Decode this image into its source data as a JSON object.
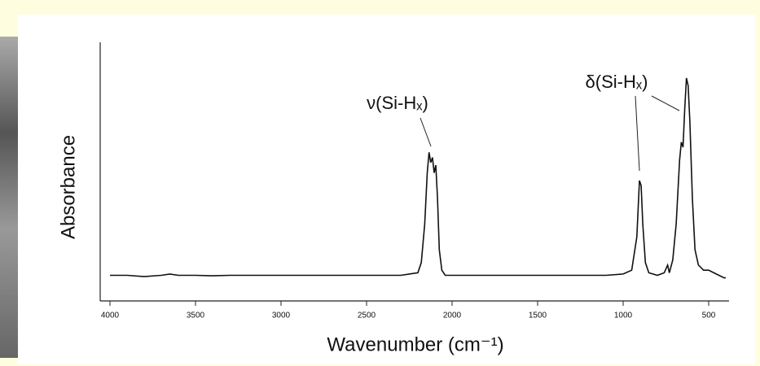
{
  "chart_data": {
    "type": "line",
    "x_label": "Wavenumber (cm⁻¹)",
    "y_label": "Absorbance",
    "annotations": [
      "ν(Si-Hₓ)",
      "δ(Si-Hₓ)"
    ],
    "x": [
      4000,
      3900,
      3800,
      3700,
      3650,
      3600,
      3500,
      3400,
      3300,
      3200,
      3000,
      2800,
      2600,
      2400,
      2300,
      2250,
      2200,
      2180,
      2160,
      2145,
      2135,
      2125,
      2115,
      2105,
      2095,
      2085,
      2075,
      2060,
      2040,
      1900,
      1700,
      1500,
      1300,
      1100,
      1000,
      950,
      920,
      905,
      895,
      885,
      870,
      850,
      800,
      760,
      740,
      730,
      710,
      690,
      670,
      660,
      650,
      640,
      630,
      620,
      610,
      595,
      580,
      560,
      530,
      500,
      470,
      440,
      410,
      400
    ],
    "values": [
      0.1,
      0.1,
      0.095,
      0.1,
      0.105,
      0.1,
      0.1,
      0.098,
      0.1,
      0.1,
      0.1,
      0.1,
      0.1,
      0.1,
      0.1,
      0.105,
      0.11,
      0.15,
      0.3,
      0.5,
      0.58,
      0.54,
      0.56,
      0.5,
      0.53,
      0.4,
      0.2,
      0.12,
      0.1,
      0.1,
      0.1,
      0.1,
      0.1,
      0.1,
      0.105,
      0.12,
      0.25,
      0.47,
      0.45,
      0.3,
      0.15,
      0.11,
      0.1,
      0.11,
      0.14,
      0.11,
      0.16,
      0.3,
      0.55,
      0.62,
      0.6,
      0.75,
      0.87,
      0.84,
      0.7,
      0.4,
      0.2,
      0.14,
      0.12,
      0.12,
      0.11,
      0.1,
      0.09,
      0.09
    ],
    "color": "#111111",
    "xlim": [
      4000,
      400
    ],
    "ylim": [
      0,
      1
    ],
    "xticks": [
      4000,
      3500,
      3000,
      2500,
      2000,
      1500,
      1000,
      500
    ]
  }
}
